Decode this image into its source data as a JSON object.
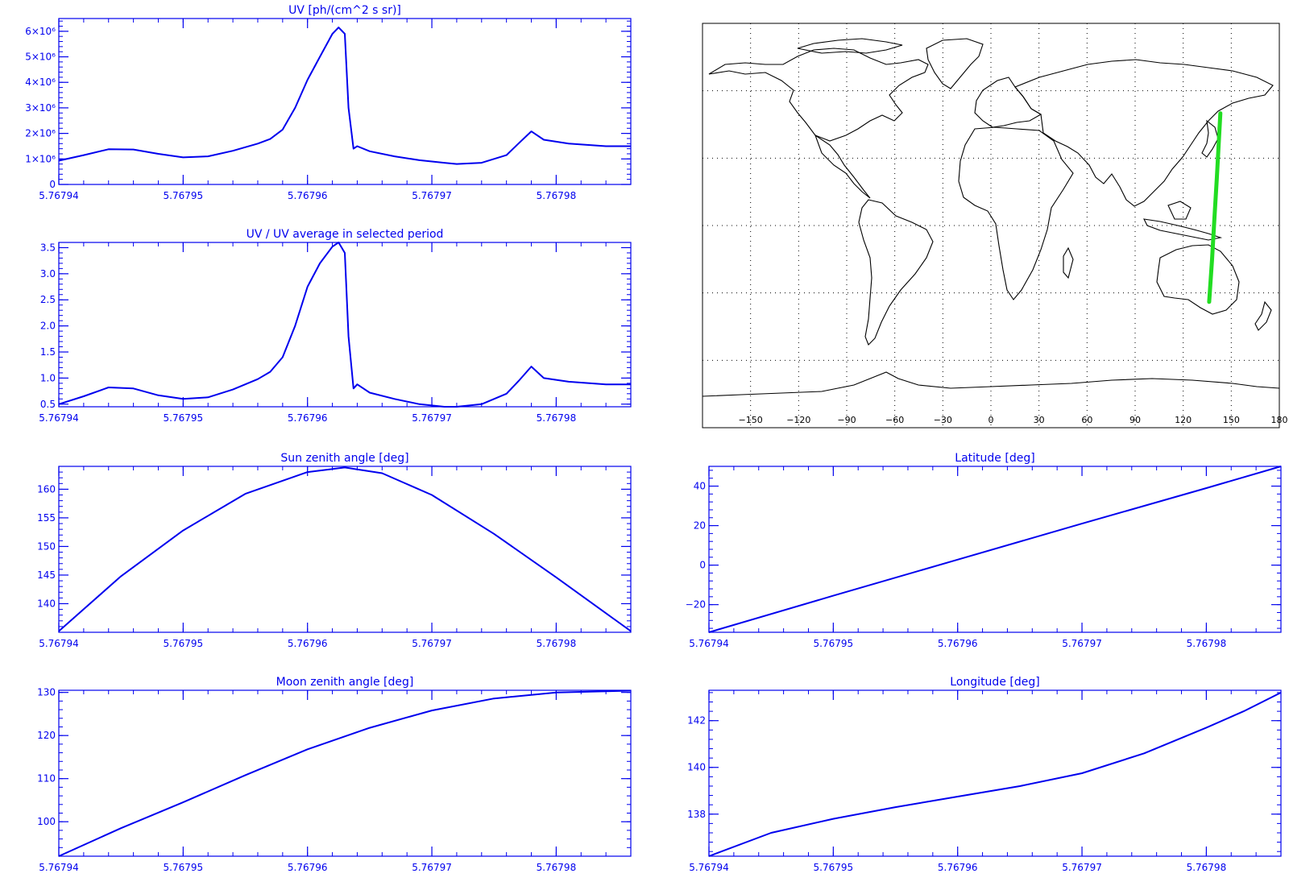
{
  "chart_data": [
    {
      "type": "line",
      "title": "UV [ph/(cm^2 s sr)]",
      "xlim": [
        5.76794,
        5.767986
      ],
      "ylim": [
        0,
        6.5
      ],
      "xticks": [
        5.76794,
        5.76795,
        5.76796,
        5.76797,
        5.76798
      ],
      "xtick_labels": [
        "5.76794",
        "5.76795",
        "5.76796",
        "5.76797",
        "5.76798"
      ],
      "yticks": [
        0,
        1,
        2,
        3,
        4,
        5,
        6
      ],
      "ytick_labels": [
        "0",
        "1×10⁶",
        "2×10⁶",
        "3×10⁶",
        "4×10⁶",
        "5×10⁶",
        "6×10⁶"
      ],
      "color": "#0000ee",
      "x": [
        5.76794,
        5.767942,
        5.767944,
        5.767946,
        5.767948,
        5.76795,
        5.767952,
        5.767954,
        5.767956,
        5.767957,
        5.767958,
        5.767959,
        5.76796,
        5.767961,
        5.767962,
        5.7679625,
        5.767963,
        5.7679633,
        5.7679637,
        5.767964,
        5.767965,
        5.767967,
        5.767969,
        5.767971,
        5.767972,
        5.767974,
        5.767976,
        5.767977,
        5.767978,
        5.767979,
        5.767981,
        5.767984,
        5.767986
      ],
      "y": [
        0.93,
        1.15,
        1.38,
        1.37,
        1.2,
        1.06,
        1.1,
        1.32,
        1.6,
        1.78,
        2.15,
        3.0,
        4.1,
        5.0,
        5.9,
        6.15,
        5.9,
        3.0,
        1.4,
        1.5,
        1.3,
        1.1,
        0.95,
        0.85,
        0.8,
        0.85,
        1.15,
        1.62,
        2.08,
        1.75,
        1.6,
        1.5,
        1.5
      ]
    },
    {
      "type": "line",
      "title": "UV / UV average in selected period",
      "xlim": [
        5.76794,
        5.767986
      ],
      "ylim": [
        0.45,
        3.6
      ],
      "xticks": [
        5.76794,
        5.76795,
        5.76796,
        5.76797,
        5.76798
      ],
      "xtick_labels": [
        "5.76794",
        "5.76795",
        "5.76796",
        "5.76797",
        "5.76798"
      ],
      "yticks": [
        0.5,
        1.0,
        1.5,
        2.0,
        2.5,
        3.0,
        3.5
      ],
      "ytick_labels": [
        "0.5",
        "1.0",
        "1.5",
        "2.0",
        "2.5",
        "3.0",
        "3.5"
      ],
      "color": "#0000ee",
      "x": [
        5.76794,
        5.767942,
        5.767944,
        5.767946,
        5.767948,
        5.76795,
        5.767952,
        5.767954,
        5.767956,
        5.767957,
        5.767958,
        5.767959,
        5.76796,
        5.767961,
        5.767962,
        5.7679625,
        5.767963,
        5.7679633,
        5.7679637,
        5.767964,
        5.767965,
        5.767967,
        5.767969,
        5.767971,
        5.767972,
        5.767974,
        5.767976,
        5.767977,
        5.767978,
        5.767979,
        5.767981,
        5.767984,
        5.767986
      ],
      "y": [
        0.5,
        0.65,
        0.82,
        0.8,
        0.67,
        0.6,
        0.63,
        0.78,
        0.98,
        1.12,
        1.4,
        2.0,
        2.75,
        3.2,
        3.52,
        3.6,
        3.4,
        1.8,
        0.8,
        0.88,
        0.72,
        0.6,
        0.5,
        0.45,
        0.45,
        0.5,
        0.7,
        0.95,
        1.22,
        1.0,
        0.93,
        0.88,
        0.88
      ]
    },
    {
      "type": "line",
      "title": "Sun zenith angle [deg]",
      "xlim": [
        5.76794,
        5.767986
      ],
      "ylim": [
        135,
        164
      ],
      "xticks": [
        5.76794,
        5.76795,
        5.76796,
        5.76797,
        5.76798
      ],
      "xtick_labels": [
        "5.76794",
        "5.76795",
        "5.76796",
        "5.76797",
        "5.76798"
      ],
      "yticks": [
        140,
        145,
        150,
        155,
        160
      ],
      "ytick_labels": [
        "140",
        "145",
        "150",
        "155",
        "160"
      ],
      "color": "#0000ee",
      "x": [
        5.76794,
        5.767945,
        5.76795,
        5.767955,
        5.76796,
        5.767963,
        5.767966,
        5.76797,
        5.767975,
        5.76798,
        5.767986
      ],
      "y": [
        135.2,
        144.8,
        152.8,
        159.2,
        163.0,
        163.8,
        162.8,
        159.0,
        152.2,
        144.6,
        135.2
      ]
    },
    {
      "type": "line",
      "title": "Latitude [deg]",
      "xlim": [
        5.76794,
        5.767986
      ],
      "ylim": [
        -34,
        50
      ],
      "xticks": [
        5.76794,
        5.76795,
        5.76796,
        5.76797,
        5.76798
      ],
      "xtick_labels": [
        "5.76794",
        "5.76795",
        "5.76796",
        "5.76797",
        "5.76798"
      ],
      "yticks": [
        -20,
        0,
        20,
        40
      ],
      "ytick_labels": [
        "−20",
        "0",
        "20",
        "40"
      ],
      "color": "#0000ee",
      "x": [
        5.76794,
        5.76795,
        5.76796,
        5.76797,
        5.76798,
        5.767986
      ],
      "y": [
        -34,
        -15.5,
        2.8,
        21.0,
        39.0,
        50
      ]
    },
    {
      "type": "line",
      "title": "Moon zenith angle [deg]",
      "xlim": [
        5.76794,
        5.767986
      ],
      "ylim": [
        92,
        130.5
      ],
      "xticks": [
        5.76794,
        5.76795,
        5.76796,
        5.76797,
        5.76798
      ],
      "xtick_labels": [
        "5.76794",
        "5.76795",
        "5.76796",
        "5.76797",
        "5.76798"
      ],
      "yticks": [
        100,
        110,
        120,
        130
      ],
      "ytick_labels": [
        "100",
        "110",
        "120",
        "130"
      ],
      "color": "#0000ee",
      "x": [
        5.76794,
        5.767945,
        5.76795,
        5.767955,
        5.76796,
        5.767965,
        5.76797,
        5.767975,
        5.76798,
        5.767986
      ],
      "y": [
        92,
        98.5,
        104.5,
        110.8,
        116.8,
        121.8,
        125.8,
        128.6,
        130.0,
        130.4
      ]
    },
    {
      "type": "line",
      "title": "Longitude [deg]",
      "xlim": [
        5.76794,
        5.767986
      ],
      "ylim": [
        136.2,
        143.3
      ],
      "xticks": [
        5.76794,
        5.76795,
        5.76796,
        5.76797,
        5.76798
      ],
      "xtick_labels": [
        "5.76794",
        "5.76795",
        "5.76796",
        "5.76797",
        "5.76798"
      ],
      "yticks": [
        138,
        140,
        142
      ],
      "ytick_labels": [
        "138",
        "140",
        "142"
      ],
      "color": "#0000ee",
      "x": [
        5.76794,
        5.767945,
        5.76795,
        5.767955,
        5.76796,
        5.767965,
        5.76797,
        5.767975,
        5.76798,
        5.767983,
        5.767986
      ],
      "y": [
        136.2,
        137.2,
        137.8,
        138.3,
        138.75,
        139.2,
        139.75,
        140.6,
        141.7,
        142.4,
        143.2
      ]
    }
  ],
  "map": {
    "lon_ticks": [
      -150,
      -120,
      -90,
      -60,
      -30,
      0,
      30,
      60,
      90,
      120,
      150,
      180
    ],
    "lon_tick_labels": [
      "−150",
      "−120",
      "−90",
      "−60",
      "−30",
      "0",
      "30",
      "60",
      "90",
      "120",
      "150",
      "180"
    ],
    "lat_grid": [
      -60,
      -30,
      0,
      30,
      60
    ],
    "track_color": "#22dd22",
    "track": {
      "lon": [
        136.2,
        138.0,
        139.5,
        141.0,
        143.2
      ],
      "lat": [
        -34,
        -15,
        3,
        21,
        50
      ]
    }
  }
}
